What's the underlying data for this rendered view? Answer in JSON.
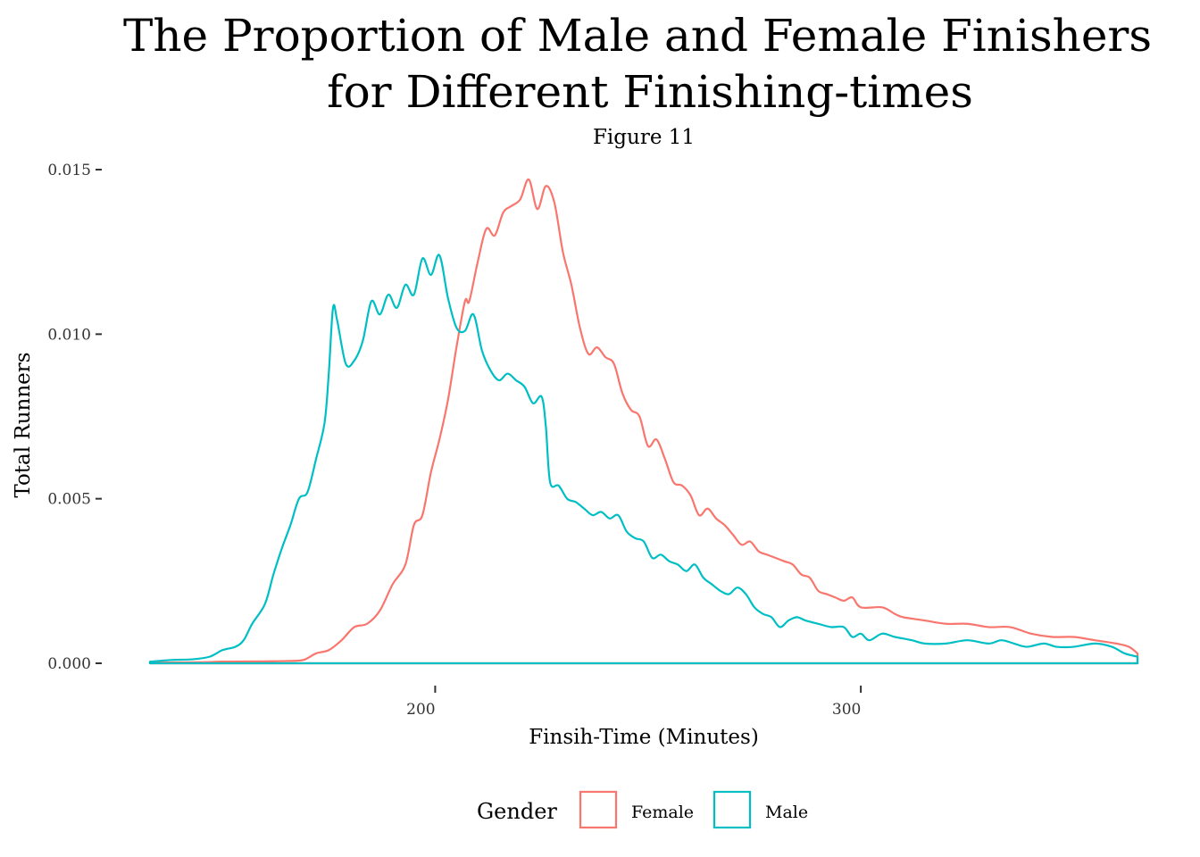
{
  "chart_data": {
    "type": "area",
    "title_lines": [
      "The Proportion of Male and Female Finishers",
      "for Different Finishing-times"
    ],
    "subtitle": "Figure 11",
    "xlabel": "Finsih-Time (Minutes)",
    "ylabel": "Total Runners",
    "xlim": [
      133,
      365
    ],
    "ylim": [
      0,
      0.015
    ],
    "x_ticks": [
      {
        "value": 200,
        "label": "200"
      },
      {
        "value": 300,
        "label": "300"
      }
    ],
    "y_ticks": [
      {
        "value": 0.0,
        "label": "0.000"
      },
      {
        "value": 0.005,
        "label": "0.005"
      },
      {
        "value": 0.01,
        "label": "0.010"
      },
      {
        "value": 0.015,
        "label": "0.015"
      }
    ],
    "grid": false,
    "legend": {
      "title": "Gender",
      "position": "bottom"
    },
    "series": [
      {
        "name": "Female",
        "color": "#F8766D",
        "points": [
          [
            133,
            2e-05
          ],
          [
            145,
            3e-05
          ],
          [
            150,
            5e-05
          ],
          [
            160,
            6e-05
          ],
          [
            165,
            7e-05
          ],
          [
            169,
            0.0001
          ],
          [
            172,
            0.0003
          ],
          [
            175,
            0.0004
          ],
          [
            178,
            0.0007
          ],
          [
            181,
            0.0011
          ],
          [
            184,
            0.0012
          ],
          [
            187,
            0.0016
          ],
          [
            190,
            0.0024
          ],
          [
            193,
            0.003
          ],
          [
            195,
            0.0042
          ],
          [
            197,
            0.0045
          ],
          [
            199,
            0.0058
          ],
          [
            201,
            0.0068
          ],
          [
            203,
            0.008
          ],
          [
            205,
            0.0096
          ],
          [
            207,
            0.011
          ],
          [
            208,
            0.011
          ],
          [
            210,
            0.0122
          ],
          [
            212,
            0.0132
          ],
          [
            214,
            0.013
          ],
          [
            216,
            0.0137
          ],
          [
            218,
            0.0139
          ],
          [
            220,
            0.0141
          ],
          [
            222,
            0.0147
          ],
          [
            224,
            0.0138
          ],
          [
            226,
            0.0145
          ],
          [
            228,
            0.014
          ],
          [
            230,
            0.0125
          ],
          [
            232,
            0.0115
          ],
          [
            234,
            0.0102
          ],
          [
            236,
            0.0094
          ],
          [
            238,
            0.0096
          ],
          [
            240,
            0.0093
          ],
          [
            242,
            0.0091
          ],
          [
            244,
            0.0082
          ],
          [
            246,
            0.0077
          ],
          [
            248,
            0.0075
          ],
          [
            250,
            0.0066
          ],
          [
            252,
            0.0068
          ],
          [
            254,
            0.0062
          ],
          [
            256,
            0.0055
          ],
          [
            258,
            0.0054
          ],
          [
            260,
            0.0051
          ],
          [
            262,
            0.0045
          ],
          [
            264,
            0.0047
          ],
          [
            266,
            0.0044
          ],
          [
            268,
            0.0042
          ],
          [
            270,
            0.0039
          ],
          [
            272,
            0.0036
          ],
          [
            274,
            0.0037
          ],
          [
            276,
            0.0034
          ],
          [
            278,
            0.0033
          ],
          [
            280,
            0.0032
          ],
          [
            282,
            0.0031
          ],
          [
            284,
            0.003
          ],
          [
            286,
            0.0027
          ],
          [
            288,
            0.0026
          ],
          [
            290,
            0.0022
          ],
          [
            292,
            0.0021
          ],
          [
            294,
            0.002
          ],
          [
            296,
            0.0019
          ],
          [
            298,
            0.002
          ],
          [
            300,
            0.0017
          ],
          [
            305,
            0.0017
          ],
          [
            308,
            0.0015
          ],
          [
            310,
            0.0014
          ],
          [
            315,
            0.0013
          ],
          [
            320,
            0.0012
          ],
          [
            325,
            0.0012
          ],
          [
            330,
            0.0011
          ],
          [
            335,
            0.0011
          ],
          [
            340,
            0.0009
          ],
          [
            345,
            0.0008
          ],
          [
            350,
            0.0008
          ],
          [
            355,
            0.0007
          ],
          [
            360,
            0.0006
          ],
          [
            363,
            0.0005
          ],
          [
            365,
            0.0003
          ]
        ]
      },
      {
        "name": "Male",
        "color": "#00BFC4",
        "points": [
          [
            133,
            5e-05
          ],
          [
            138,
            0.0001
          ],
          [
            143,
            0.00012
          ],
          [
            147,
            0.0002
          ],
          [
            150,
            0.0004
          ],
          [
            153,
            0.0005
          ],
          [
            155,
            0.0007
          ],
          [
            157,
            0.0012
          ],
          [
            160,
            0.0018
          ],
          [
            162,
            0.0027
          ],
          [
            164,
            0.0035
          ],
          [
            166,
            0.0042
          ],
          [
            168,
            0.005
          ],
          [
            170,
            0.0052
          ],
          [
            172,
            0.0062
          ],
          [
            174,
            0.0073
          ],
          [
            175,
            0.0088
          ],
          [
            176,
            0.0108
          ],
          [
            177,
            0.0104
          ],
          [
            179,
            0.0091
          ],
          [
            181,
            0.0092
          ],
          [
            183,
            0.0098
          ],
          [
            185,
            0.011
          ],
          [
            187,
            0.0106
          ],
          [
            189,
            0.0112
          ],
          [
            191,
            0.0108
          ],
          [
            193,
            0.0115
          ],
          [
            195,
            0.0112
          ],
          [
            197,
            0.0123
          ],
          [
            199,
            0.0118
          ],
          [
            201,
            0.0124
          ],
          [
            203,
            0.0111
          ],
          [
            205,
            0.0102
          ],
          [
            207,
            0.0101
          ],
          [
            209,
            0.0106
          ],
          [
            211,
            0.0095
          ],
          [
            213,
            0.0089
          ],
          [
            215,
            0.0086
          ],
          [
            217,
            0.0088
          ],
          [
            219,
            0.0086
          ],
          [
            221,
            0.0084
          ],
          [
            223,
            0.0079
          ],
          [
            225,
            0.0081
          ],
          [
            226,
            0.0072
          ],
          [
            227,
            0.0055
          ],
          [
            229,
            0.0054
          ],
          [
            231,
            0.005
          ],
          [
            233,
            0.0049
          ],
          [
            235,
            0.0047
          ],
          [
            237,
            0.0045
          ],
          [
            239,
            0.0046
          ],
          [
            241,
            0.0044
          ],
          [
            243,
            0.0045
          ],
          [
            245,
            0.004
          ],
          [
            247,
            0.0038
          ],
          [
            249,
            0.0037
          ],
          [
            251,
            0.0032
          ],
          [
            253,
            0.0033
          ],
          [
            255,
            0.0031
          ],
          [
            257,
            0.003
          ],
          [
            259,
            0.0028
          ],
          [
            261,
            0.003
          ],
          [
            263,
            0.0026
          ],
          [
            265,
            0.0024
          ],
          [
            267,
            0.0022
          ],
          [
            269,
            0.0021
          ],
          [
            271,
            0.0023
          ],
          [
            273,
            0.0021
          ],
          [
            275,
            0.0017
          ],
          [
            277,
            0.0015
          ],
          [
            279,
            0.0014
          ],
          [
            281,
            0.0011
          ],
          [
            283,
            0.0013
          ],
          [
            285,
            0.0014
          ],
          [
            287,
            0.0013
          ],
          [
            290,
            0.0012
          ],
          [
            293,
            0.0011
          ],
          [
            296,
            0.0011
          ],
          [
            298,
            0.0008
          ],
          [
            300,
            0.0009
          ],
          [
            302,
            0.0007
          ],
          [
            305,
            0.0009
          ],
          [
            308,
            0.0008
          ],
          [
            312,
            0.0007
          ],
          [
            315,
            0.0006
          ],
          [
            320,
            0.0006
          ],
          [
            325,
            0.0007
          ],
          [
            330,
            0.0006
          ],
          [
            333,
            0.0007
          ],
          [
            336,
            0.0006
          ],
          [
            339,
            0.0005
          ],
          [
            343,
            0.0006
          ],
          [
            346,
            0.0005
          ],
          [
            350,
            0.0005
          ],
          [
            355,
            0.0006
          ],
          [
            359,
            0.0005
          ],
          [
            362,
            0.0003
          ],
          [
            365,
            0.0002
          ]
        ]
      }
    ]
  }
}
